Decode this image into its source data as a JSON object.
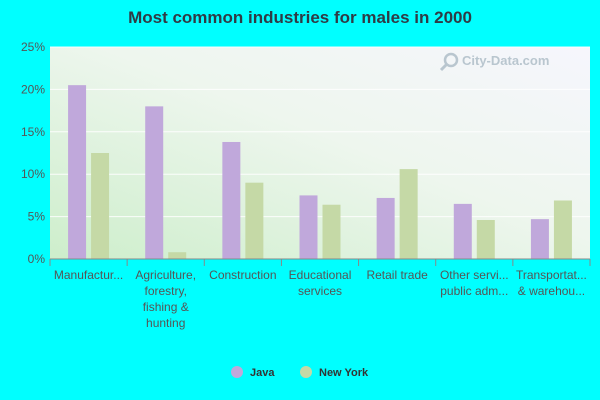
{
  "chart_data": {
    "type": "bar",
    "title": "Most common industries for males in 2000",
    "categories": [
      "Manufactur...",
      "Agriculture, forestry, fishing & hunting",
      "Construction",
      "Educational services",
      "Retail trade",
      "Other servi... public adm...",
      "Transportat... & warehou..."
    ],
    "category_lines": [
      [
        "Manufactur..."
      ],
      [
        "Agriculture,",
        "forestry,",
        "fishing &",
        "hunting"
      ],
      [
        "Construction"
      ],
      [
        "Educational",
        "services"
      ],
      [
        "Retail trade"
      ],
      [
        "Other servi...",
        "public adm..."
      ],
      [
        "Transportat...",
        "& warehou..."
      ]
    ],
    "series": [
      {
        "name": "Java",
        "color": "#c0a8db",
        "values": [
          20.5,
          18.0,
          13.8,
          7.5,
          7.2,
          6.5,
          4.7
        ]
      },
      {
        "name": "New York",
        "color": "#c5d9a6",
        "values": [
          12.5,
          0.8,
          9.0,
          6.4,
          10.6,
          4.6,
          6.9
        ]
      }
    ],
    "ylim": [
      0,
      25
    ],
    "yticks": [
      "0%",
      "5%",
      "10%",
      "15%",
      "20%",
      "25%"
    ],
    "ytick_values": [
      0,
      5,
      10,
      15,
      20,
      25
    ],
    "legend_position": "bottom-center",
    "grid": true
  },
  "watermark": {
    "text": "City-Data.com",
    "icon": "magnifier-icon"
  }
}
